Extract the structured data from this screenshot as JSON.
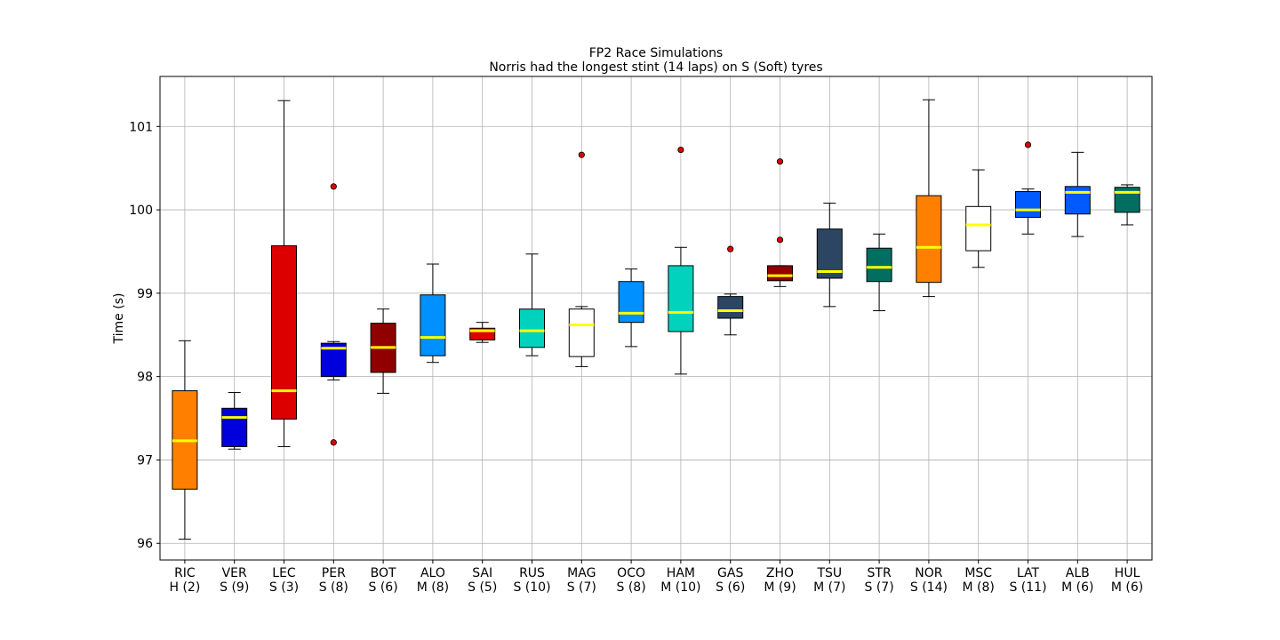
{
  "chart_data": {
    "type": "box",
    "title": "FP2 Race Simulations",
    "subtitle": "Norris had the longest stint (14 laps) on S (Soft) tyres",
    "xlabel": "",
    "ylabel": "Time (s)",
    "ylim": [
      95.8,
      101.6
    ],
    "yticks": [
      96,
      97,
      98,
      99,
      100,
      101
    ],
    "grid": true,
    "median_color": "#ffff00",
    "outlier_color": "#dd0000",
    "series": [
      {
        "driver": "RIC",
        "tyre": "H (2)",
        "color": "#ff8000",
        "whisker_low": 96.05,
        "q1": 96.65,
        "median": 97.23,
        "q3": 97.83,
        "whisker_high": 98.43,
        "outliers": []
      },
      {
        "driver": "VER",
        "tyre": "S (9)",
        "color": "#0000dd",
        "whisker_low": 97.13,
        "q1": 97.16,
        "median": 97.51,
        "q3": 97.62,
        "whisker_high": 97.81,
        "outliers": []
      },
      {
        "driver": "LEC",
        "tyre": "S (3)",
        "color": "#dc0000",
        "whisker_low": 97.16,
        "q1": 97.49,
        "median": 97.83,
        "q3": 99.57,
        "whisker_high": 101.31,
        "outliers": []
      },
      {
        "driver": "PER",
        "tyre": "S (8)",
        "color": "#0000dd",
        "whisker_low": 97.96,
        "q1": 98.0,
        "median": 98.34,
        "q3": 98.4,
        "whisker_high": 98.42,
        "outliers": [
          100.28,
          97.21
        ]
      },
      {
        "driver": "BOT",
        "tyre": "S (6)",
        "color": "#900000",
        "whisker_low": 97.8,
        "q1": 98.05,
        "median": 98.35,
        "q3": 98.64,
        "whisker_high": 98.81,
        "outliers": []
      },
      {
        "driver": "ALO",
        "tyre": "M (8)",
        "color": "#0090ff",
        "whisker_low": 98.17,
        "q1": 98.25,
        "median": 98.47,
        "q3": 98.98,
        "whisker_high": 99.35,
        "outliers": []
      },
      {
        "driver": "SAI",
        "tyre": "S (5)",
        "color": "#dc0000",
        "whisker_low": 98.41,
        "q1": 98.44,
        "median": 98.55,
        "q3": 98.58,
        "whisker_high": 98.65,
        "outliers": []
      },
      {
        "driver": "RUS",
        "tyre": "S (10)",
        "color": "#00d2be",
        "whisker_low": 98.25,
        "q1": 98.35,
        "median": 98.55,
        "q3": 98.81,
        "whisker_high": 99.47,
        "outliers": []
      },
      {
        "driver": "MAG",
        "tyre": "S (7)",
        "color": "#ffffff",
        "whisker_low": 98.12,
        "q1": 98.24,
        "median": 98.62,
        "q3": 98.81,
        "whisker_high": 98.84,
        "outliers": [
          100.66
        ]
      },
      {
        "driver": "OCO",
        "tyre": "S (8)",
        "color": "#0090ff",
        "whisker_low": 98.36,
        "q1": 98.65,
        "median": 98.76,
        "q3": 99.14,
        "whisker_high": 99.29,
        "outliers": []
      },
      {
        "driver": "HAM",
        "tyre": "M (10)",
        "color": "#00d2be",
        "whisker_low": 98.03,
        "q1": 98.54,
        "median": 98.77,
        "q3": 99.33,
        "whisker_high": 99.55,
        "outliers": [
          100.72
        ]
      },
      {
        "driver": "GAS",
        "tyre": "S (6)",
        "color": "#2b4562",
        "whisker_low": 98.5,
        "q1": 98.7,
        "median": 98.79,
        "q3": 98.96,
        "whisker_high": 98.99,
        "outliers": [
          99.53
        ]
      },
      {
        "driver": "ZHO",
        "tyre": "M (9)",
        "color": "#900000",
        "whisker_low": 99.08,
        "q1": 99.15,
        "median": 99.21,
        "q3": 99.33,
        "whisker_high": 99.33,
        "outliers": [
          100.58,
          99.64
        ]
      },
      {
        "driver": "TSU",
        "tyre": "M (7)",
        "color": "#2b4562",
        "whisker_low": 98.84,
        "q1": 99.18,
        "median": 99.26,
        "q3": 99.77,
        "whisker_high": 100.08,
        "outliers": []
      },
      {
        "driver": "STR",
        "tyre": "S (7)",
        "color": "#006f62",
        "whisker_low": 98.79,
        "q1": 99.14,
        "median": 99.31,
        "q3": 99.54,
        "whisker_high": 99.71,
        "outliers": []
      },
      {
        "driver": "NOR",
        "tyre": "S (14)",
        "color": "#ff8000",
        "whisker_low": 98.96,
        "q1": 99.13,
        "median": 99.55,
        "q3": 100.17,
        "whisker_high": 101.32,
        "outliers": []
      },
      {
        "driver": "MSC",
        "tyre": "M (8)",
        "color": "#ffffff",
        "whisker_low": 99.31,
        "q1": 99.51,
        "median": 99.82,
        "q3": 100.04,
        "whisker_high": 100.48,
        "outliers": []
      },
      {
        "driver": "LAT",
        "tyre": "S (11)",
        "color": "#005aff",
        "whisker_low": 99.71,
        "q1": 99.91,
        "median": 100.0,
        "q3": 100.22,
        "whisker_high": 100.25,
        "outliers": [
          100.78
        ]
      },
      {
        "driver": "ALB",
        "tyre": "M (6)",
        "color": "#005aff",
        "whisker_low": 99.68,
        "q1": 99.95,
        "median": 100.21,
        "q3": 100.28,
        "whisker_high": 100.69,
        "outliers": []
      },
      {
        "driver": "HUL",
        "tyre": "M (6)",
        "color": "#006f62",
        "whisker_low": 99.82,
        "q1": 99.97,
        "median": 100.21,
        "q3": 100.27,
        "whisker_high": 100.3,
        "outliers": []
      }
    ]
  }
}
